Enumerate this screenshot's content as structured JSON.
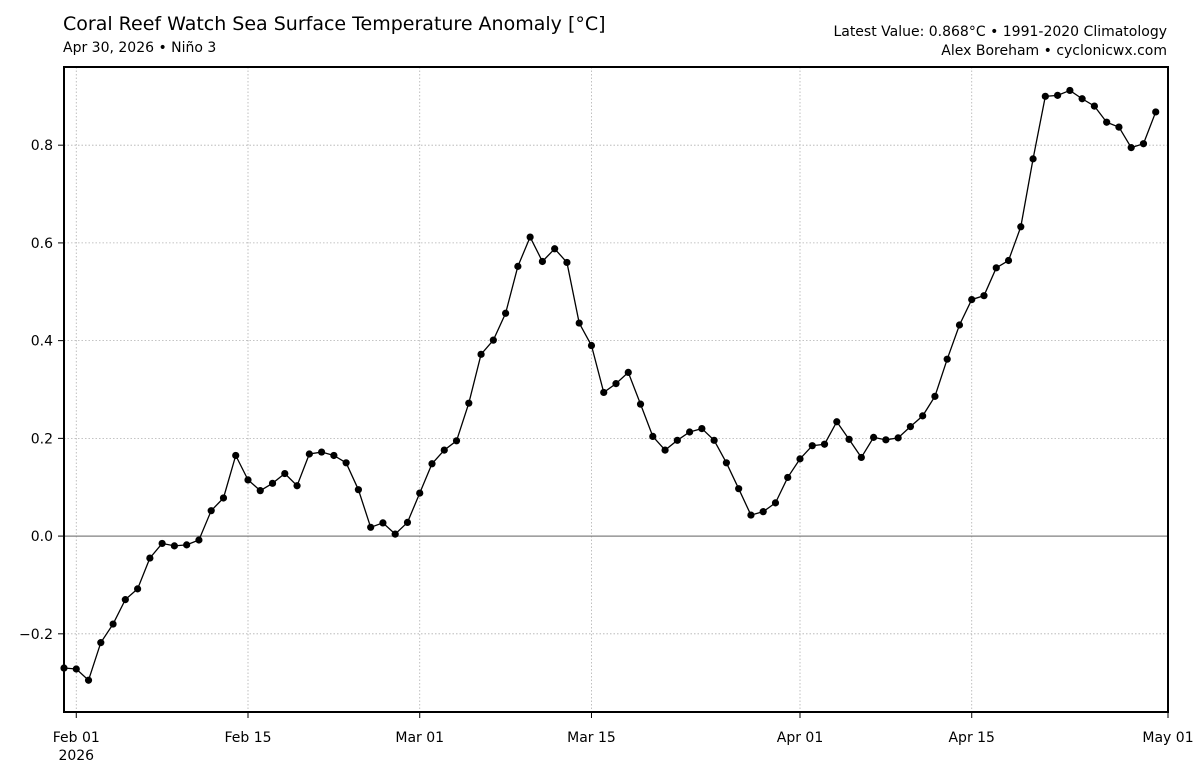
{
  "header": {
    "title": "Coral Reef Watch Sea Surface Temperature Anomaly [°C]",
    "subtitle": "Apr 30, 2026 • Niño 3",
    "right_line1": "Latest Value: 0.868°C • 1991-2020 Climatology",
    "right_line2": "Alex Boreham • cyclonicwx.com"
  },
  "chart_data": {
    "type": "line",
    "title": "Coral Reef Watch Sea Surface Temperature Anomaly [°C]",
    "xlabel": "",
    "ylabel": "",
    "ylim": [
      -0.36,
      0.96
    ],
    "xlim": [
      "2026-01-31",
      "2026-05-01"
    ],
    "grid": true,
    "zero_line": true,
    "y_ticks": [
      -0.2,
      0.0,
      0.2,
      0.4,
      0.6,
      0.8
    ],
    "y_tick_labels": [
      "−0.2",
      "0.0",
      "0.2",
      "0.4",
      "0.6",
      "0.8"
    ],
    "x_ticks": [
      {
        "date": "2026-02-01",
        "label": "Feb 01",
        "sublabel": "2026"
      },
      {
        "date": "2026-02-15",
        "label": "Feb 15",
        "sublabel": ""
      },
      {
        "date": "2026-03-01",
        "label": "Mar 01",
        "sublabel": ""
      },
      {
        "date": "2026-03-15",
        "label": "Mar 15",
        "sublabel": ""
      },
      {
        "date": "2026-04-01",
        "label": "Apr 01",
        "sublabel": ""
      },
      {
        "date": "2026-04-15",
        "label": "Apr 15",
        "sublabel": ""
      },
      {
        "date": "2026-05-01",
        "label": "May 01",
        "sublabel": ""
      }
    ],
    "series": [
      {
        "start_date": "2026-01-31",
        "values": [
          -0.27,
          -0.272,
          -0.295,
          -0.218,
          -0.18,
          -0.13,
          -0.108,
          -0.045,
          -0.015,
          -0.02,
          -0.018,
          -0.008,
          0.052,
          0.078,
          0.165,
          0.115,
          0.093,
          0.108,
          0.128,
          0.103,
          0.168,
          0.172,
          0.165,
          0.15,
          0.095,
          0.018,
          0.027,
          0.004,
          0.028,
          0.088,
          0.148,
          0.176,
          0.195,
          0.272,
          0.372,
          0.401,
          0.456,
          0.552,
          0.612,
          0.562,
          0.588,
          0.56,
          0.436,
          0.39,
          0.294,
          0.312,
          0.335,
          0.27,
          0.204,
          0.176,
          0.196,
          0.213,
          0.22,
          0.196,
          0.15,
          0.097,
          0.043,
          0.05,
          0.068,
          0.12,
          0.158,
          0.185,
          0.188,
          0.234,
          0.198,
          0.161,
          0.202,
          0.197,
          0.201,
          0.224,
          0.246,
          0.286,
          0.362,
          0.432,
          0.484,
          0.492,
          0.549,
          0.564,
          0.633,
          0.772,
          0.9,
          0.902,
          0.912,
          0.895,
          0.88,
          0.847,
          0.837,
          0.795,
          0.803,
          0.868
        ]
      }
    ]
  }
}
